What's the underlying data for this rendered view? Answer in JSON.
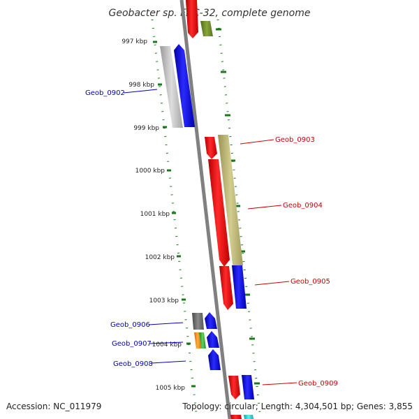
{
  "title": "Geobacter sp. FRC-32, complete genome",
  "footer": {
    "accession": "Accession: NC_011979",
    "summary": "Topology: circular; Length: 4,304,501 bp; Genes: 3,855"
  },
  "ticks": [
    "997 kbp",
    "998 kbp",
    "999 kbp",
    "1000 kbp",
    "1001 kbp",
    "1002 kbp",
    "1003 kbp",
    "1004 kbp",
    "1005 kbp"
  ],
  "gene_labels": {
    "left": [
      "Geob_0902",
      "Geob_0906",
      "Geob_0907",
      "Geob_0908"
    ],
    "right": [
      "Geob_0903",
      "Geob_0904",
      "Geob_0905",
      "Geob_0909"
    ]
  },
  "colors": {
    "label_left": "#0000bb",
    "label_right": "#cc0000",
    "backbone": "#808080",
    "tick": "#1a7a1a",
    "red": "#ee0000",
    "blue": "#0000ee",
    "olive": "#6b8e23",
    "khaki": "#b5b070",
    "gray": "#b0b0b0",
    "dark_gray": "#666666",
    "orange": "#ff8c00",
    "green": "#33aa33",
    "cyan": "#22cccc"
  }
}
